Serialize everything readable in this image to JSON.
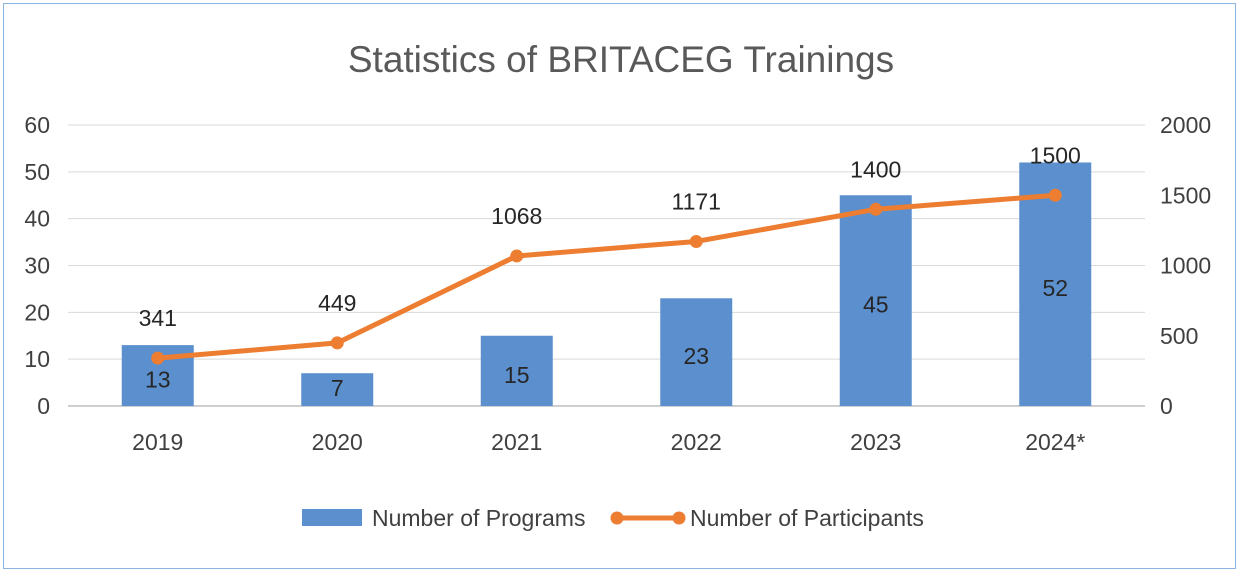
{
  "chart_data": {
    "type": "bar+line",
    "title": "Statistics of BRITACEG Trainings",
    "categories": [
      "2019",
      "2020",
      "2021",
      "2022",
      "2023",
      "2024*"
    ],
    "series": [
      {
        "name": "Number of Programs",
        "type": "bar",
        "axis": "left",
        "values": [
          13,
          7,
          15,
          23,
          45,
          52
        ],
        "labels": [
          "13",
          "7",
          "15",
          "23",
          "45",
          "52"
        ],
        "color": "#5b8fcd"
      },
      {
        "name": "Number of Participants",
        "type": "line",
        "axis": "right",
        "values": [
          341,
          449,
          1068,
          1171,
          1400,
          1500
        ],
        "labels": [
          "341",
          "449",
          "1068",
          "1171",
          "1400",
          "1500"
        ],
        "color": "#ed7d31"
      }
    ],
    "y_left": {
      "ylim": [
        0,
        60
      ],
      "ticks": [
        "0",
        "10",
        "20",
        "30",
        "40",
        "50",
        "60"
      ]
    },
    "y_right": {
      "ylim": [
        0,
        2000
      ],
      "ticks": [
        "0",
        "500",
        "1000",
        "1500",
        "2000"
      ]
    },
    "grid": true,
    "legend": "bottom",
    "gridColor": "#d9d9d9",
    "axisColor": "#bfbfbf"
  }
}
